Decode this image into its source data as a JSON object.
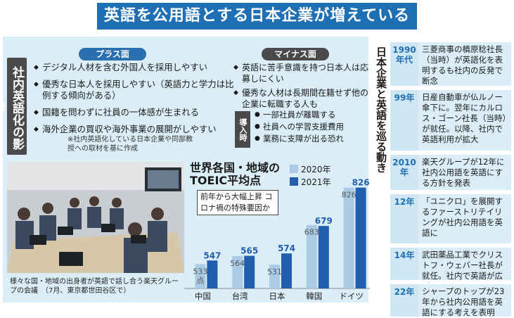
{
  "title": "英語を公用語とする日本企業が増えている",
  "left_side_label": "社内英語化の影響",
  "plus": {
    "label": "プラス面",
    "items": [
      "デジタル人材を含む外国人を採用しやすい",
      "優秀な日本人を採用しやすい（英語力と学力は比例する傾向がある）",
      "国籍を問わずに社員の一体感が生まれる",
      "海外企業の買収や海外事業の展開がしやすい"
    ]
  },
  "minus": {
    "label": "マイナス面",
    "items": [
      "英語に苦手意識を持つ日本人は応募しにくい",
      "優秀な人材は長期間在籍せず他の企業に転職する人も"
    ]
  },
  "introduction": {
    "label": "導入時",
    "items": [
      "一部社員が離職する",
      "社員への学習支援費用",
      "業務に支障が出る恐れ"
    ]
  },
  "note": "※社内英語化している日本企業や同部教授への取材を基に作成",
  "photo_caption": "様々な国・地域の出身者が英語で話し合う楽天グループの会議　（7月、東京都世田谷区で）",
  "chart_annotation": "前年から大幅上昇 コロナ禍の特殊要因か",
  "chart_data": {
    "type": "bar",
    "title": "世界各国・地域の TOEIC平均点",
    "categories": [
      "中国",
      "台湾",
      "日本",
      "韓国",
      "ドイツ"
    ],
    "series": [
      {
        "name": "2020年",
        "values": [
          533,
          564,
          531,
          683,
          826
        ],
        "color": "#a9cbe6"
      },
      {
        "name": "2021年",
        "values": [
          547,
          565,
          574,
          679,
          826
        ],
        "color": "#1f5fad"
      }
    ],
    "first_value_suffix": "点",
    "ylim": [
      440,
      860
    ]
  },
  "right_side_label": "日本企業と英語を巡る動き",
  "timeline": [
    {
      "year": "1990年代",
      "text": "三菱商事の槙原稔社長（当時）が英語化を表明するも社内の反発で断念"
    },
    {
      "year": "99年",
      "text": "日産自動車が仏ルノー傘下に。翌年にカルロス・ゴーン社長（当時）が就任。以降、社内で英語利用が拡大"
    },
    {
      "year": "2010年",
      "text": "楽天グループが12年に社内公用語を英語にする方針を発表"
    },
    {
      "year": "12年",
      "text": "「ユニクロ」を展開するファーストリテイリングが社内公用語を英語に"
    },
    {
      "year": "14年",
      "text": "武田薬品工業でクリストフ・ウェバー社長が就任。社内で英語が広がる"
    },
    {
      "year": "22年",
      "text": "シャープのトップが23年から社内公用語を英語にする考えを表明"
    }
  ]
}
